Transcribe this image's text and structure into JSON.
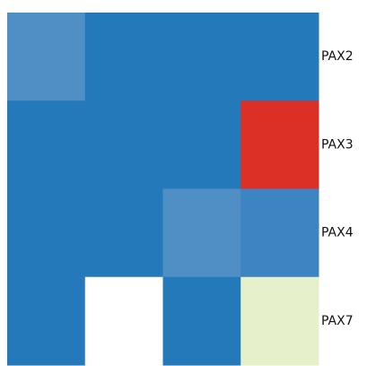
{
  "chart_data": {
    "type": "heatmap",
    "rows": [
      "PAX2",
      "PAX3",
      "PAX4",
      "PAX7"
    ],
    "columns": [
      "",
      "",
      "",
      ""
    ],
    "cell_colors": [
      [
        "#4f8fc6",
        "#2479bb",
        "#2479bb",
        "#2479bb"
      ],
      [
        "#2479bb",
        "#2479bb",
        "#2479bb",
        "#dc3027"
      ],
      [
        "#2479bb",
        "#2479bb",
        "#4f8fc6",
        "#3c84c2"
      ],
      [
        "#2479bb",
        "#ffffff",
        "#2479bb",
        "#e6f1cc"
      ]
    ],
    "title": "",
    "xlabel": "",
    "ylabel": "",
    "legend": "none"
  }
}
